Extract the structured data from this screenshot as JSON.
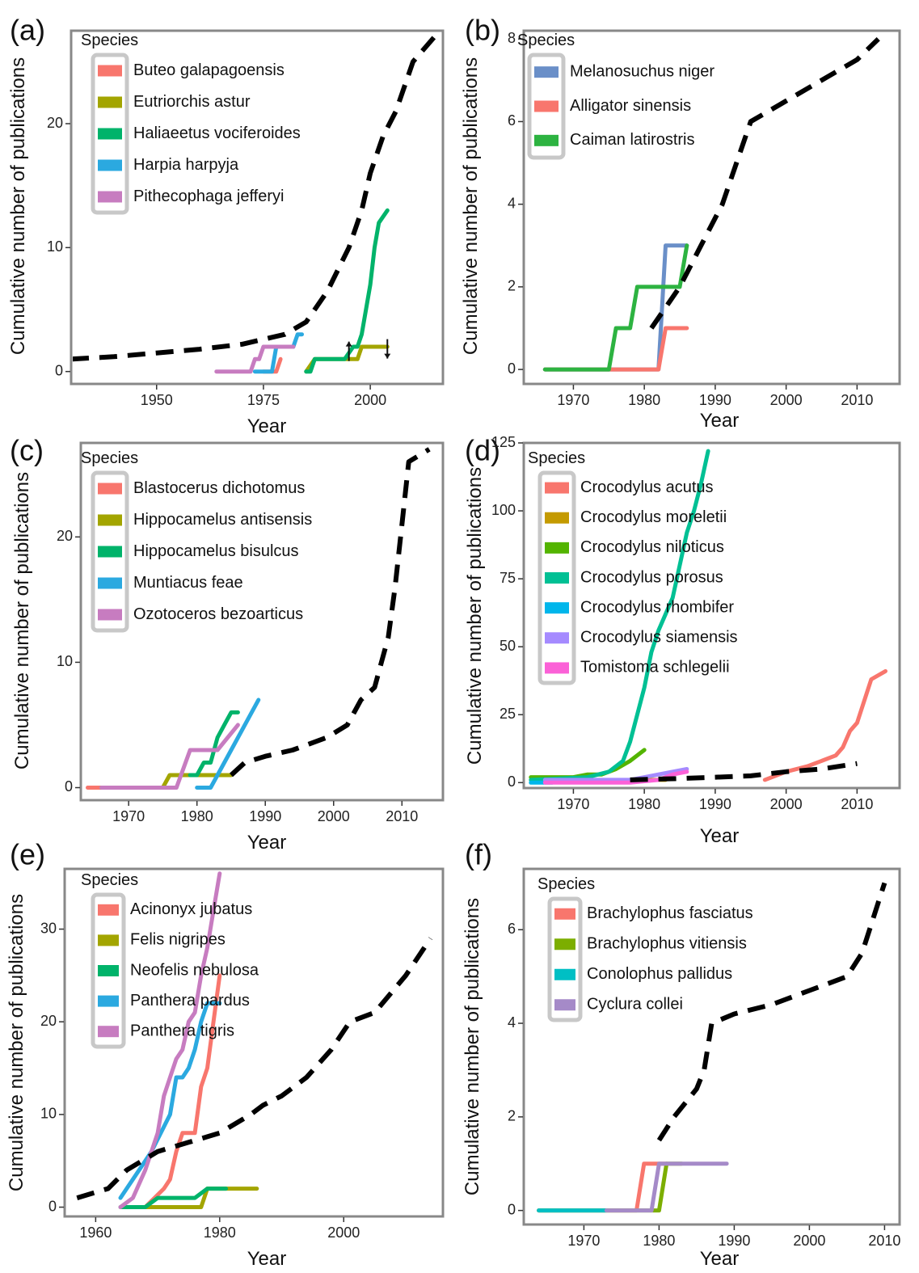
{
  "figure": {
    "background": "#ffffff",
    "panel_border_color": "#888888",
    "dashed_line_color": "#000000"
  },
  "chart_data": [
    {
      "panel": "(a)",
      "type": "line",
      "xlabel": "Year",
      "ylabel": "Cumulative number of publications",
      "xlim": [
        1930,
        2017
      ],
      "ylim": [
        -1,
        27.5
      ],
      "xticks": [
        1950,
        1975,
        2000
      ],
      "yticks": [
        0,
        10,
        20
      ],
      "grid": false,
      "legend_title": "Species",
      "legend_position": "top-left",
      "series": [
        {
          "name": "Buteo galapagoensis",
          "color": "#F8766D",
          "x": [
            1975,
            1978,
            1979
          ],
          "y": [
            0,
            0,
            1
          ]
        },
        {
          "name": "Eutriorchis astur",
          "color": "#A3A500",
          "x": [
            1985,
            1987,
            1993,
            1995,
            1997,
            1998,
            2004
          ],
          "y": [
            0,
            1,
            1,
            1,
            1,
            2,
            2
          ]
        },
        {
          "name": "Haliaeetus vociferoides",
          "color": "#00B36A",
          "x": [
            1985,
            1986,
            1987,
            1991,
            1994,
            1996,
            1997,
            1998,
            2000,
            2001,
            2002,
            2004
          ],
          "y": [
            0,
            0,
            1,
            1,
            1,
            2,
            2,
            3,
            7,
            10,
            12,
            13
          ]
        },
        {
          "name": "Harpia harpyja",
          "color": "#2BA9E0",
          "x": [
            1973,
            1977,
            1978,
            1982,
            1983,
            1984
          ],
          "y": [
            0,
            0,
            2,
            2,
            3,
            3
          ]
        },
        {
          "name": "Pithecophaga jefferyi",
          "color": "#C77CC0",
          "x": [
            1964,
            1972,
            1973,
            1974,
            1975,
            1976,
            1982
          ],
          "y": [
            0,
            0,
            1,
            1,
            2,
            2,
            2
          ]
        },
        {
          "name": "",
          "color": "#000000",
          "dashed": true,
          "x": [
            1930,
            1940,
            1950,
            1960,
            1970,
            1980,
            1985,
            1990,
            1995,
            1998,
            2000,
            2003,
            2006,
            2010,
            2015
          ],
          "y": [
            1,
            1.2,
            1.5,
            1.8,
            2.2,
            3,
            4,
            6.5,
            10,
            13,
            16,
            19,
            21,
            25,
            27
          ]
        }
      ],
      "annotations": [
        {
          "type": "arrow-up",
          "x": 1995,
          "y": 1.5
        },
        {
          "type": "arrow-down",
          "x": 2004,
          "y": 1.7
        }
      ]
    },
    {
      "panel": "(b)",
      "type": "line",
      "xlabel": "Year",
      "ylabel": "Cumulative number of publications",
      "xlim": [
        1963,
        2016
      ],
      "ylim": [
        -0.35,
        8.2
      ],
      "xticks": [
        1970,
        1980,
        1990,
        2000,
        2010
      ],
      "yticks": [
        0,
        2,
        4,
        6,
        8
      ],
      "grid": false,
      "legend_title": "Species",
      "legend_position": "top-left",
      "series": [
        {
          "name": "Melanosuchus niger",
          "color": "#6A8FC8",
          "x": [
            1966,
            1982,
            1983,
            1986
          ],
          "y": [
            0,
            0,
            3,
            3
          ]
        },
        {
          "name": "Alligator sinensis",
          "color": "#F8766D",
          "x": [
            1966,
            1982,
            1983,
            1986
          ],
          "y": [
            0,
            0,
            1,
            1
          ]
        },
        {
          "name": "Caiman latirostris",
          "color": "#2DB341",
          "x": [
            1966,
            1975,
            1976,
            1978,
            1979,
            1985,
            1986
          ],
          "y": [
            0,
            0,
            1,
            1,
            2,
            2,
            3
          ]
        },
        {
          "name": "",
          "color": "#000000",
          "dashed": true,
          "x": [
            1981,
            1985,
            1988,
            1991,
            1993,
            1995,
            2000,
            2005,
            2010,
            2013
          ],
          "y": [
            1,
            2,
            3,
            4,
            5,
            6,
            6.5,
            7,
            7.5,
            8
          ]
        }
      ]
    },
    {
      "panel": "(c)",
      "type": "line",
      "xlabel": "Year",
      "ylabel": "Cumulative number of publications",
      "xlim": [
        1963,
        2016
      ],
      "ylim": [
        -1,
        27.5
      ],
      "xticks": [
        1970,
        1980,
        1990,
        2000,
        2010
      ],
      "yticks": [
        0,
        10,
        20
      ],
      "grid": false,
      "legend_title": "Species",
      "legend_position": "top-left",
      "series": [
        {
          "name": "Blastocerus dichotomus",
          "color": "#F8766D",
          "x": [
            1964,
            1966
          ],
          "y": [
            0,
            0
          ]
        },
        {
          "name": "Hippocamelus antisensis",
          "color": "#A3A500",
          "x": [
            1966,
            1975,
            1976,
            1984,
            1985
          ],
          "y": [
            0,
            0,
            1,
            1,
            1
          ]
        },
        {
          "name": "Hippocamelus bisulcus",
          "color": "#00B36A",
          "x": [
            1979,
            1980,
            1981,
            1982,
            1983,
            1984,
            1985,
            1986
          ],
          "y": [
            1,
            1,
            2,
            2,
            4,
            5,
            6,
            6
          ]
        },
        {
          "name": "Muntiacus feae",
          "color": "#2BA9E0",
          "x": [
            1980,
            1982,
            1983,
            1985,
            1989
          ],
          "y": [
            0,
            0,
            1,
            3,
            7
          ]
        },
        {
          "name": "Ozotoceros bezoarticus",
          "color": "#C77CC0",
          "x": [
            1966,
            1977,
            1979,
            1983,
            1986
          ],
          "y": [
            0,
            0,
            3,
            3,
            5
          ]
        },
        {
          "name": "",
          "color": "#000000",
          "dashed": true,
          "x": [
            1985,
            1987,
            1990,
            1994,
            1999,
            2002,
            2004,
            2006,
            2007,
            2008,
            2009,
            2010,
            2011,
            2014
          ],
          "y": [
            1,
            2,
            2.5,
            3,
            4,
            5,
            7,
            8,
            10,
            12,
            16,
            21,
            26,
            27
          ]
        }
      ]
    },
    {
      "panel": "(d)",
      "type": "line",
      "xlabel": "Year",
      "ylabel": "Cumulative number of publications",
      "xlim": [
        1963,
        2016
      ],
      "ylim": [
        -2,
        125
      ],
      "xticks": [
        1970,
        1980,
        1990,
        2000,
        2010
      ],
      "yticks": [
        0,
        25,
        50,
        75,
        100,
        125
      ],
      "grid": false,
      "legend_title": "Species",
      "legend_position": "top-left",
      "series": [
        {
          "name": "Crocodylus acutus",
          "color": "#F8766D",
          "x": [
            1997,
            2000,
            2003,
            2005,
            2007,
            2008,
            2009,
            2010,
            2012,
            2014
          ],
          "y": [
            1,
            4,
            6,
            8,
            10,
            13,
            19,
            22,
            38,
            41
          ]
        },
        {
          "name": "Crocodylus moreletii",
          "color": "#C49A00",
          "x": [
            1979,
            1983
          ],
          "y": [
            1,
            1
          ]
        },
        {
          "name": "Crocodylus niloticus",
          "color": "#53B400",
          "x": [
            1964,
            1970,
            1972,
            1974,
            1976,
            1978,
            1980
          ],
          "y": [
            2,
            2,
            3,
            3,
            5,
            8,
            12
          ]
        },
        {
          "name": "Crocodylus porosus",
          "color": "#00C094",
          "x": [
            1964,
            1972,
            1975,
            1977,
            1978,
            1979,
            1980,
            1981,
            1982,
            1983,
            1984,
            1985,
            1986,
            1987,
            1988,
            1989
          ],
          "y": [
            1,
            2,
            4,
            8,
            15,
            25,
            35,
            48,
            56,
            62,
            68,
            80,
            92,
            100,
            110,
            122
          ]
        },
        {
          "name": "Crocodylus rhombifer",
          "color": "#00B6EB",
          "x": [
            1964,
            1967
          ],
          "y": [
            0,
            0
          ]
        },
        {
          "name": "Crocodylus siamensis",
          "color": "#A58AFF",
          "x": [
            1966,
            1978,
            1980,
            1982,
            1984,
            1986
          ],
          "y": [
            1,
            1,
            2,
            3,
            4,
            5
          ]
        },
        {
          "name": "Tomistoma schlegelii",
          "color": "#FB61D7",
          "x": [
            1966,
            1978,
            1982,
            1984,
            1986
          ],
          "y": [
            0,
            0,
            1,
            3,
            4
          ]
        },
        {
          "name": "",
          "color": "#000000",
          "dashed": true,
          "x": [
            1978,
            1985,
            1990,
            1995,
            2000,
            2005,
            2010
          ],
          "y": [
            1,
            1.5,
            2,
            2.5,
            4,
            5,
            7
          ]
        }
      ]
    },
    {
      "panel": "(e)",
      "type": "line",
      "xlabel": "Year",
      "ylabel": "Cumulative number of publications",
      "xlim": [
        1955,
        2016
      ],
      "ylim": [
        -1,
        36.5
      ],
      "xticks": [
        1960,
        1980,
        2000
      ],
      "yticks": [
        0,
        10,
        20,
        30
      ],
      "grid": false,
      "legend_title": "Species",
      "legend_position": "top-left",
      "series": [
        {
          "name": "Acinonyx jubatus",
          "color": "#F8766D",
          "x": [
            1966,
            1968,
            1971,
            1972,
            1973,
            1974,
            1976,
            1977,
            1978,
            1979,
            1980
          ],
          "y": [
            0,
            0,
            2,
            3,
            6,
            8,
            8,
            13,
            15,
            20,
            25
          ]
        },
        {
          "name": "Felis nigripes",
          "color": "#A3A500",
          "x": [
            1966,
            1977,
            1978,
            1986
          ],
          "y": [
            0,
            0,
            2,
            2
          ]
        },
        {
          "name": "Neofelis nebulosa",
          "color": "#00B36A",
          "x": [
            1964,
            1968,
            1970,
            1976,
            1978,
            1981
          ],
          "y": [
            0,
            0,
            1,
            1,
            2,
            2
          ]
        },
        {
          "name": "Panthera pardus",
          "color": "#2BA9E0",
          "x": [
            1964,
            1965,
            1967,
            1969,
            1972,
            1973,
            1974,
            1975,
            1976,
            1977,
            1978,
            1979,
            1980
          ],
          "y": [
            1,
            2,
            4,
            6,
            10,
            14,
            14,
            15,
            17,
            20,
            22,
            22,
            22
          ]
        },
        {
          "name": "Panthera tigris",
          "color": "#C77CC0",
          "x": [
            1964,
            1966,
            1968,
            1970,
            1971,
            1972,
            1973,
            1974,
            1975,
            1976,
            1977,
            1978,
            1979,
            1980
          ],
          "y": [
            0,
            1,
            4,
            8,
            12,
            14,
            16,
            17,
            20,
            21,
            25,
            28,
            32,
            36
          ]
        },
        {
          "name": "",
          "color": "#000000",
          "dashed": true,
          "x": [
            1957,
            1962,
            1965,
            1970,
            1975,
            1980,
            1985,
            1987,
            1990,
            1994,
            1998,
            2001,
            2005,
            2010,
            2014
          ],
          "y": [
            1,
            2,
            4,
            6,
            7,
            8,
            10,
            11,
            12,
            14,
            17,
            20,
            21,
            25,
            29
          ]
        }
      ]
    },
    {
      "panel": "(f)",
      "type": "line",
      "xlabel": "Year",
      "ylabel": "Cumulative number of publications",
      "xlim": [
        1962,
        2012
      ],
      "ylim": [
        -0.3,
        7.3
      ],
      "xticks": [
        1970,
        1980,
        1990,
        2000,
        2010
      ],
      "yticks": [
        0,
        2,
        4,
        6
      ],
      "grid": false,
      "legend_title": "Species",
      "legend_position": "top-left",
      "series": [
        {
          "name": "Brachylophus fasciatus",
          "color": "#F8766D",
          "x": [
            1964,
            1977,
            1978,
            1981
          ],
          "y": [
            0,
            0,
            1,
            1
          ]
        },
        {
          "name": "Brachylophus vitiensis",
          "color": "#7CAE00",
          "x": [
            1964,
            1980,
            1981,
            1983
          ],
          "y": [
            0,
            0,
            1,
            1
          ]
        },
        {
          "name": "Conolophus pallidus",
          "color": "#00BFC4",
          "x": [
            1964,
            1973
          ],
          "y": [
            0,
            0
          ]
        },
        {
          "name": "Cyclura collei",
          "color": "#A58AC8",
          "x": [
            1973,
            1979,
            1980,
            1989
          ],
          "y": [
            0,
            0,
            1,
            1
          ]
        },
        {
          "name": "",
          "color": "#000000",
          "dashed": true,
          "x": [
            1980,
            1982,
            1985,
            1986,
            1987,
            1990,
            1995,
            2000,
            2005,
            2007,
            2008,
            2010
          ],
          "y": [
            1.5,
            2,
            2.6,
            3,
            4,
            4.2,
            4.4,
            4.7,
            5,
            5.5,
            6,
            7
          ]
        }
      ]
    }
  ]
}
